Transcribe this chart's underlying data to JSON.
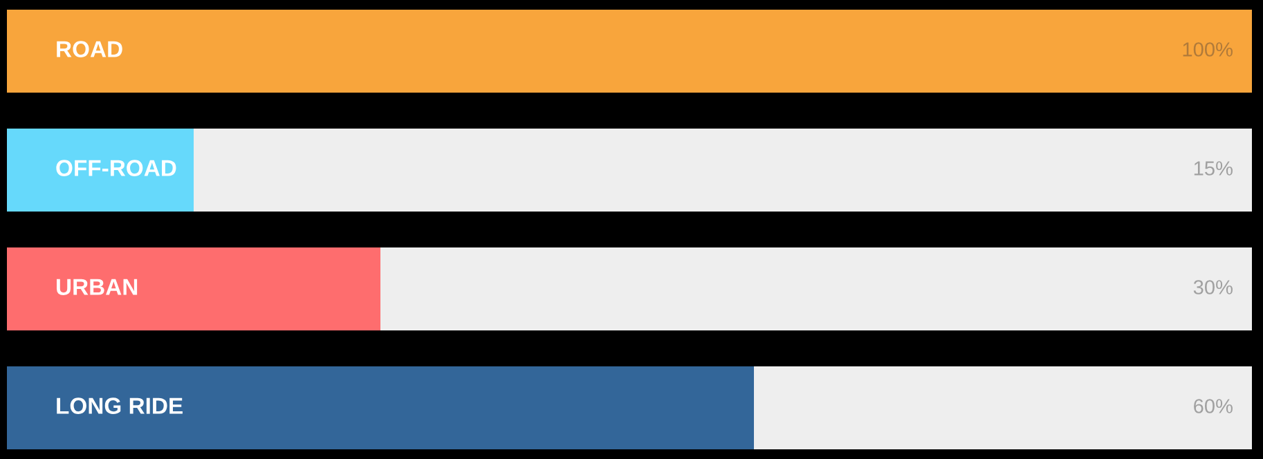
{
  "chart_data": {
    "type": "bar",
    "orientation": "horizontal",
    "categories": [
      "ROAD",
      "OFF-ROAD",
      "URBAN",
      "LONG RIDE"
    ],
    "values": [
      100,
      15,
      30,
      60
    ],
    "colors": [
      "#f8a53c",
      "#66d9fb",
      "#fe6d6e",
      "#336699"
    ],
    "value_labels": [
      "100%",
      "15%",
      "30%",
      "60%"
    ],
    "xlim": [
      0,
      100
    ]
  }
}
